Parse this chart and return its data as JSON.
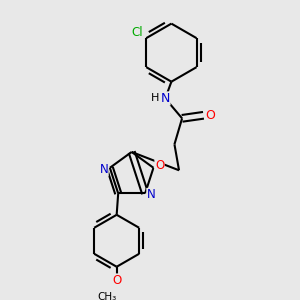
{
  "bg_color": "#e8e8e8",
  "bond_color": "#000000",
  "line_width": 1.5,
  "atom_colors": {
    "C": "#000000",
    "N": "#0000cc",
    "O": "#ff0000",
    "Cl": "#00aa00",
    "H": "#000000"
  },
  "font_size": 9
}
